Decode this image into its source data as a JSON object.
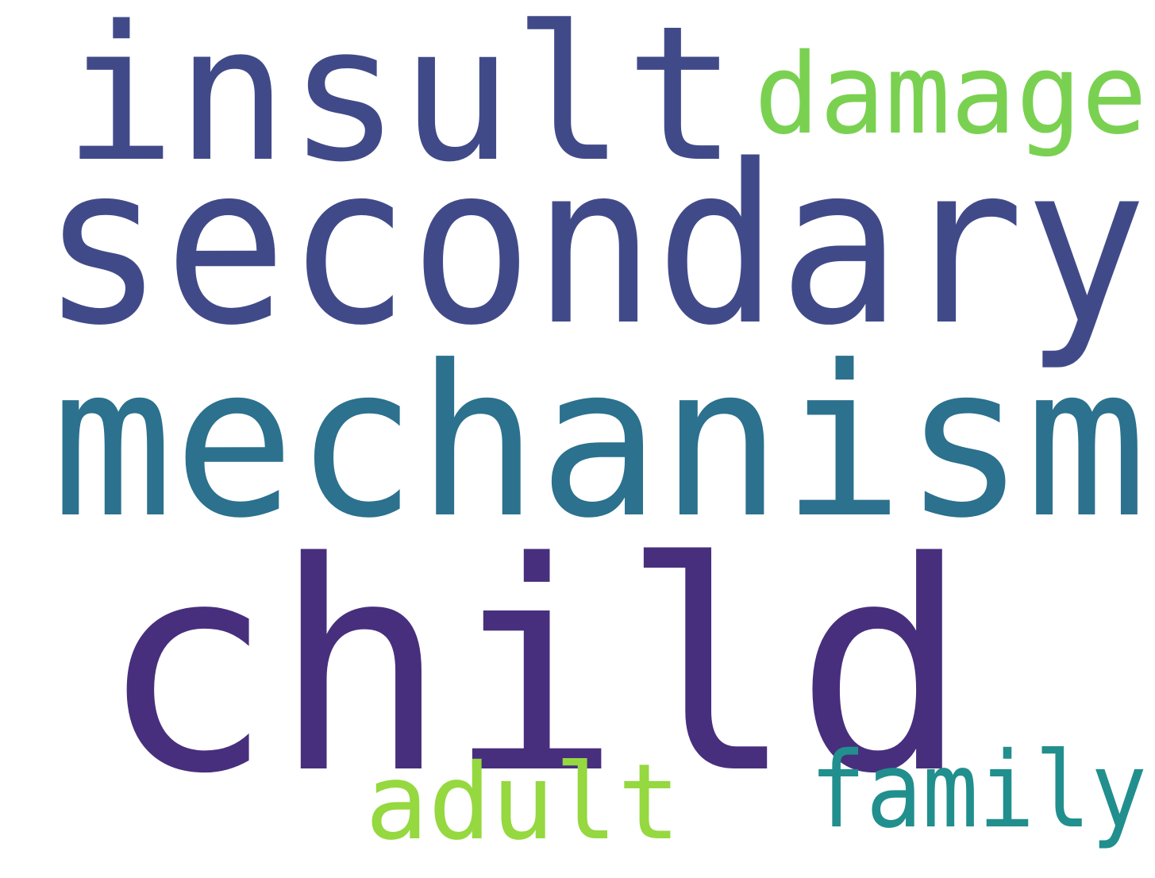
{
  "words": [
    {
      "id": "insult",
      "text": "insult",
      "color": "#414a89"
    },
    {
      "id": "damage",
      "text": "damage",
      "color": "#7ad151"
    },
    {
      "id": "secondary",
      "text": "secondary",
      "color": "#414a89"
    },
    {
      "id": "mechanism",
      "text": "mechanism",
      "color": "#2c718e"
    },
    {
      "id": "child",
      "text": "child",
      "color": "#472f7d"
    },
    {
      "id": "adult",
      "text": "adult",
      "color": "#95d840"
    },
    {
      "id": "family",
      "text": "family",
      "color": "#218f8d"
    }
  ],
  "background": "#ffffff"
}
